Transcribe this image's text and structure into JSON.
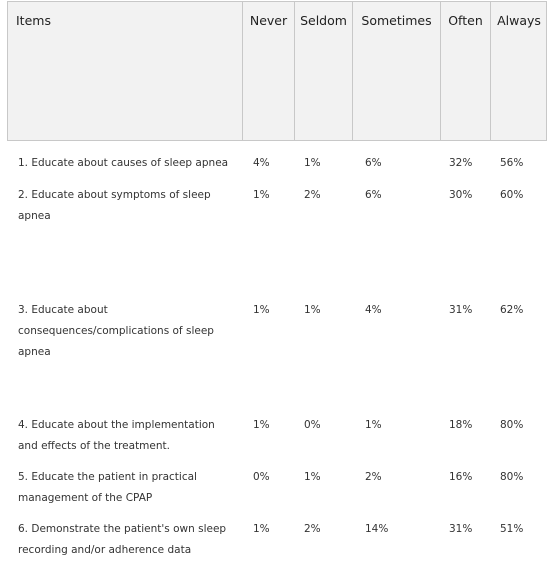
{
  "table": {
    "headers": {
      "items": "Items",
      "never": "Never",
      "seldom": "Seldom",
      "sometimes": "Sometimes",
      "often": "Often",
      "always": "Always"
    },
    "rows": [
      {
        "item": "1. Educate about causes of sleep apnea",
        "never": "4%",
        "seldom": "1%",
        "sometimes": "6%",
        "often": "32%",
        "always": "56%"
      },
      {
        "item": "2. Educate about symptoms of sleep apnea",
        "never": "1%",
        "seldom": "2%",
        "sometimes": "6%",
        "often": "30%",
        "always": "60%"
      },
      {
        "item": "3. Educate about consequences/complications of sleep apnea",
        "never": "1%",
        "seldom": "1%",
        "sometimes": "4%",
        "often": "31%",
        "always": "62%"
      },
      {
        "item": "4. Educate about the implementation and effects of the treatment.",
        "never": "1%",
        "seldom": "0%",
        "sometimes": "1%",
        "often": "18%",
        "always": "80%"
      },
      {
        "item": "5. Educate the patient in practical management of the CPAP",
        "never": "0%",
        "seldom": "1%",
        "sometimes": "2%",
        "often": "16%",
        "always": "80%"
      },
      {
        "item": "6. Demonstrate the patient's own sleep recording and/or adherence data",
        "never": "1%",
        "seldom": "2%",
        "sometimes": "14%",
        "often": "31%",
        "always": "51%"
      }
    ]
  }
}
